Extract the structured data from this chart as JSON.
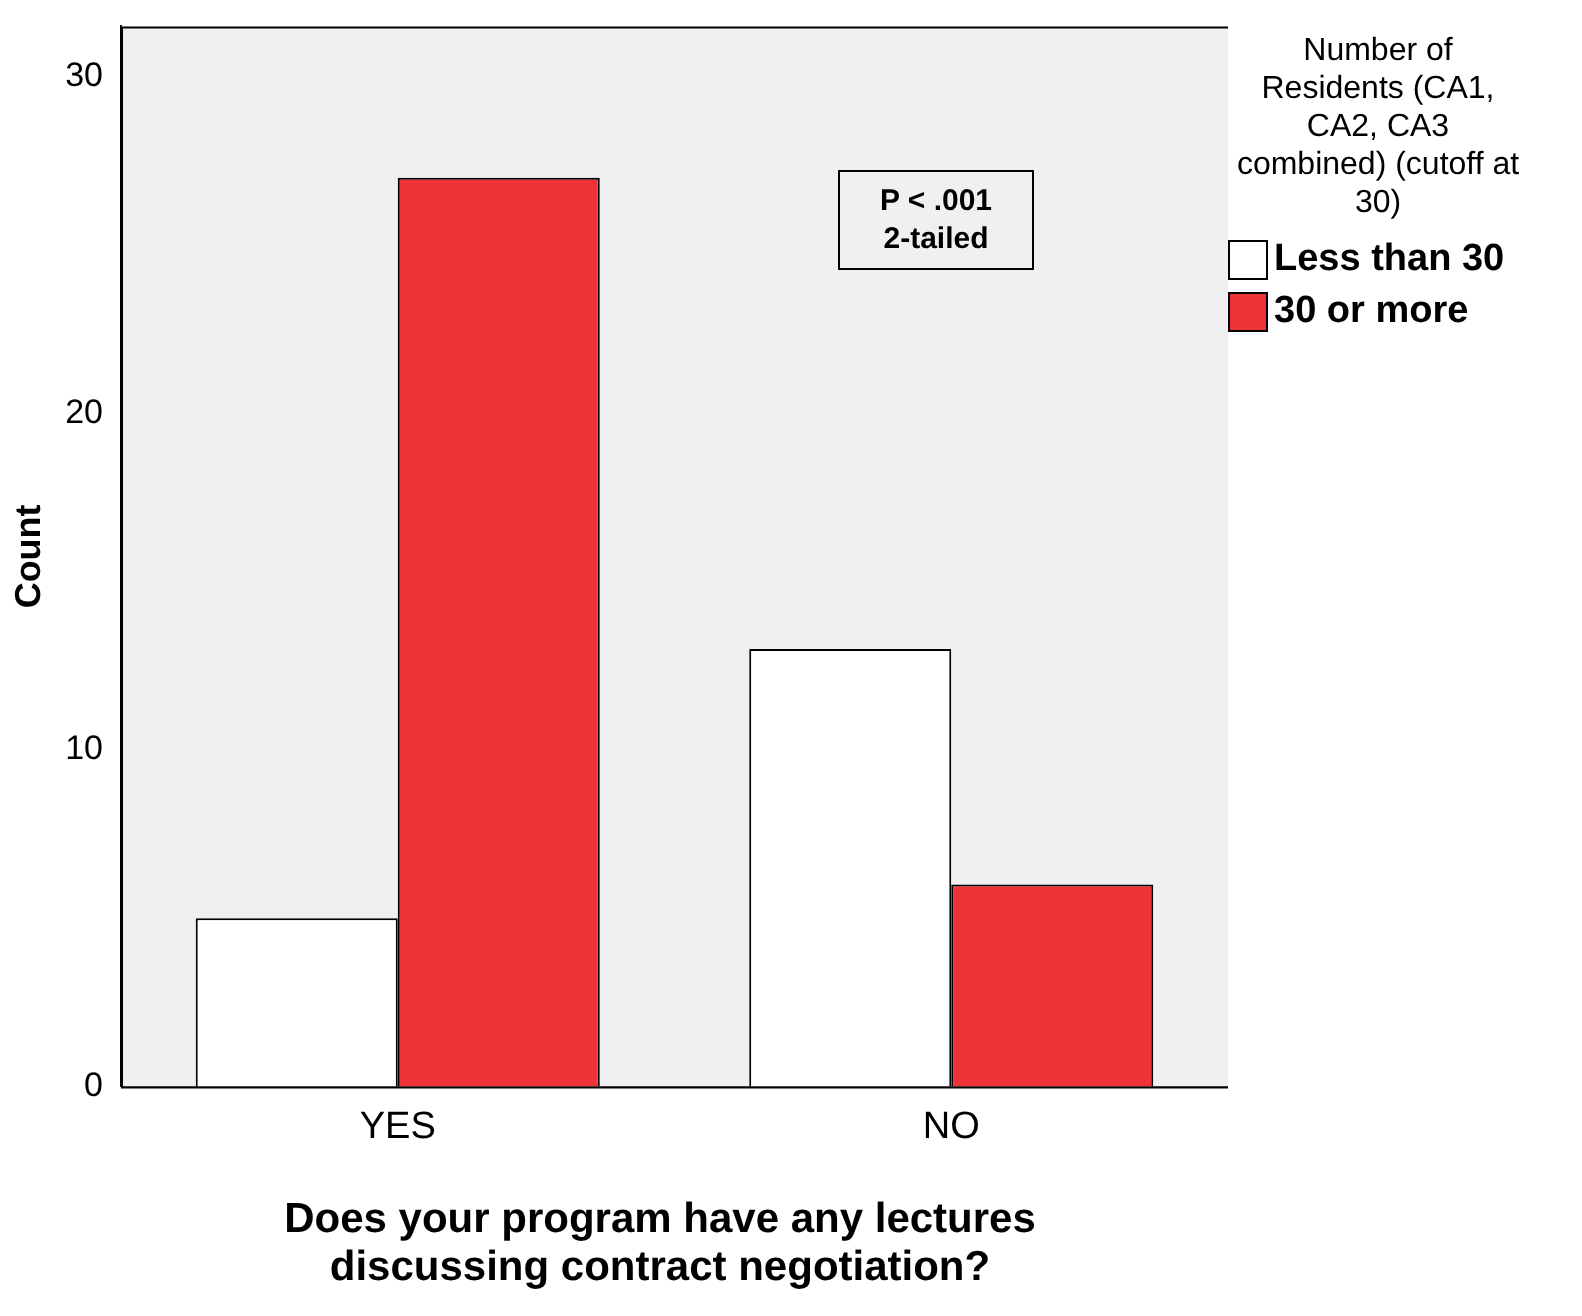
{
  "chart_data": {
    "type": "bar",
    "xlabel": "Does your program have any lectures discussing contract negotiation?",
    "ylabel": "Count",
    "legend_title": "Number of Residents (CA1, CA2, CA3 combined) (cutoff at 30)",
    "legend": "right",
    "categories": [
      "YES",
      "NO"
    ],
    "series": [
      {
        "name": "Less than 30",
        "color": "#ffffff",
        "values": [
          5,
          13
        ]
      },
      {
        "name": "30 or more",
        "color": "#ee3338",
        "values": [
          27,
          6
        ]
      }
    ],
    "ylim": [
      0,
      31.5
    ],
    "yticks": [
      0,
      10,
      20,
      30
    ],
    "grid": false,
    "annotations": [
      "P < .001\n2-tailed"
    ]
  }
}
